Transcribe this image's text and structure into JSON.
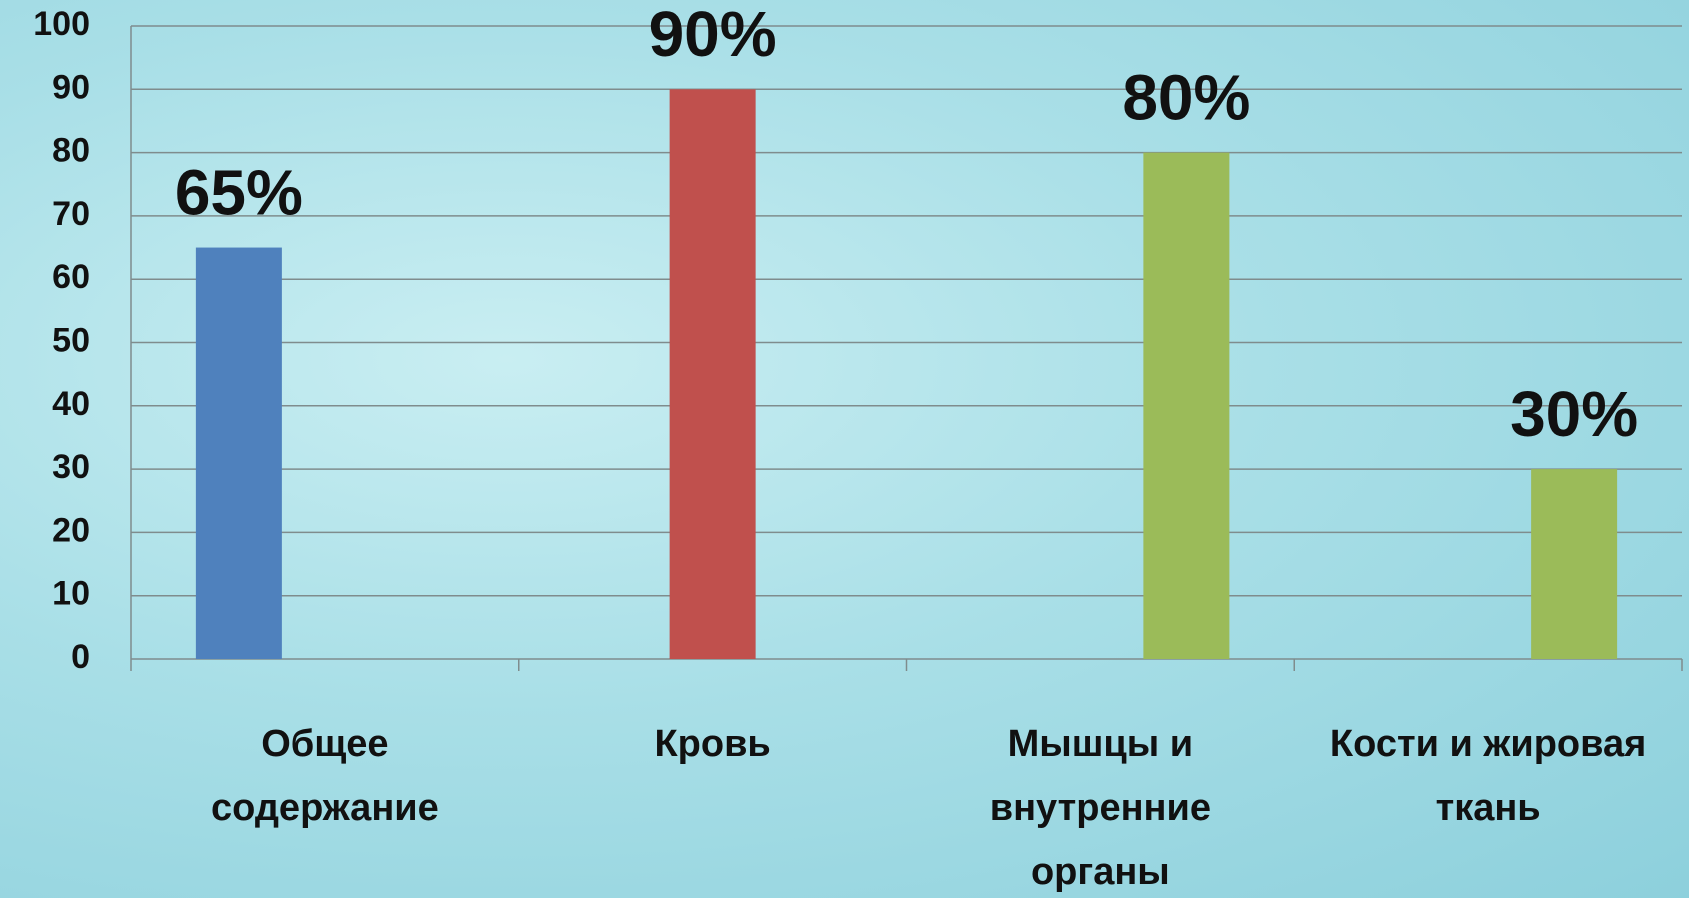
{
  "chart_data": {
    "type": "bar",
    "categories": [
      "Общее содержание",
      "Кровь",
      "Мышцы и внутренние органы",
      "Кости и жировая ткань"
    ],
    "series": [
      {
        "color": "#4f81bd",
        "values": [
          65,
          null,
          null,
          null
        ],
        "value_labels": [
          "65%",
          null,
          null,
          null
        ]
      },
      {
        "color": "#c0504d",
        "values": [
          null,
          90,
          null,
          null
        ],
        "value_labels": [
          null,
          "90%",
          null,
          null
        ]
      },
      {
        "color": "#9bbb59",
        "values": [
          null,
          null,
          80,
          30
        ],
        "value_labels": [
          null,
          null,
          "80%",
          "30%"
        ]
      }
    ],
    "ylim": [
      0,
      100
    ],
    "yticks": [
      0,
      10,
      20,
      30,
      40,
      50,
      60,
      70,
      80,
      90,
      100
    ],
    "grid": true
  }
}
